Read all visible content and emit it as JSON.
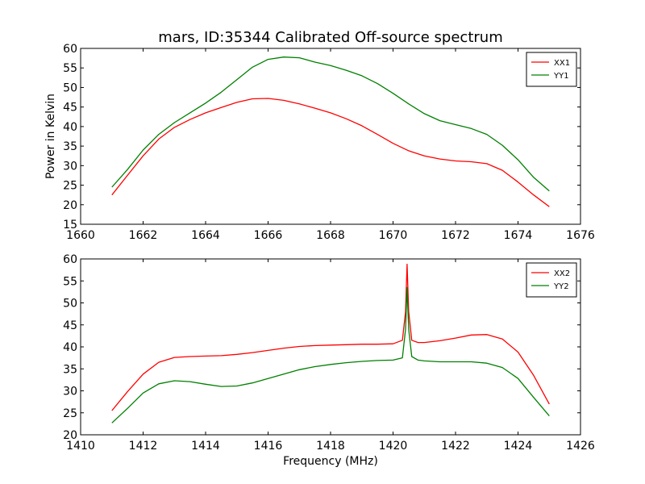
{
  "figure": {
    "title": "mars, ID:35344 Calibrated Off-source spectrum"
  },
  "chart_data": [
    {
      "type": "line",
      "title": "mars, ID:35344 Calibrated Off-source spectrum",
      "xlabel": "",
      "ylabel": "Power in Kelvin",
      "xlim": [
        1660,
        1676
      ],
      "ylim": [
        15,
        60
      ],
      "xticks": [
        1660,
        1662,
        1664,
        1666,
        1668,
        1670,
        1672,
        1674,
        1676
      ],
      "yticks": [
        15,
        20,
        25,
        30,
        35,
        40,
        45,
        50,
        55,
        60
      ],
      "grid": false,
      "legend": "top-right",
      "series": [
        {
          "name": "XX1",
          "color": "#ff0000",
          "x": [
            1661.0,
            1661.5,
            1662.0,
            1662.5,
            1663.0,
            1663.5,
            1664.0,
            1664.5,
            1665.0,
            1665.5,
            1666.0,
            1666.5,
            1667.0,
            1667.5,
            1668.0,
            1668.5,
            1669.0,
            1669.5,
            1670.0,
            1670.5,
            1671.0,
            1671.5,
            1672.0,
            1672.5,
            1673.0,
            1673.5,
            1674.0,
            1674.5,
            1675.0
          ],
          "y": [
            22.5,
            27.5,
            32.5,
            36.8,
            39.8,
            41.8,
            43.5,
            44.9,
            46.2,
            47.1,
            47.2,
            46.7,
            45.8,
            44.7,
            43.5,
            42.0,
            40.2,
            38.0,
            35.7,
            33.8,
            32.5,
            31.7,
            31.2,
            31.0,
            30.5,
            28.8,
            25.8,
            22.5,
            19.5
          ]
        },
        {
          "name": "YY1",
          "color": "#008000",
          "x": [
            1661.0,
            1661.5,
            1662.0,
            1662.5,
            1663.0,
            1663.5,
            1664.0,
            1664.5,
            1665.0,
            1665.5,
            1666.0,
            1666.5,
            1667.0,
            1667.5,
            1668.0,
            1668.5,
            1669.0,
            1669.5,
            1670.0,
            1670.5,
            1671.0,
            1671.5,
            1672.0,
            1672.5,
            1673.0,
            1673.5,
            1674.0,
            1674.5,
            1675.0
          ],
          "y": [
            24.5,
            29.0,
            34.0,
            38.0,
            41.0,
            43.5,
            46.0,
            48.8,
            52.0,
            55.2,
            57.2,
            57.8,
            57.6,
            56.5,
            55.6,
            54.4,
            53.0,
            51.0,
            48.5,
            45.8,
            43.3,
            41.5,
            40.5,
            39.5,
            38.0,
            35.2,
            31.5,
            27.0,
            23.5
          ]
        }
      ]
    },
    {
      "type": "line",
      "title": "",
      "xlabel": "Frequency (MHz)",
      "ylabel": "",
      "xlim": [
        1410,
        1426
      ],
      "ylim": [
        20,
        60
      ],
      "xticks": [
        1410,
        1412,
        1414,
        1416,
        1418,
        1420,
        1422,
        1424,
        1426
      ],
      "yticks": [
        20,
        25,
        30,
        35,
        40,
        45,
        50,
        55,
        60
      ],
      "grid": false,
      "legend": "top-right",
      "series": [
        {
          "name": "XX2",
          "color": "#ff0000",
          "x": [
            1411.0,
            1411.5,
            1412.0,
            1412.5,
            1413.0,
            1413.5,
            1414.0,
            1414.5,
            1415.0,
            1415.5,
            1416.0,
            1416.5,
            1417.0,
            1417.5,
            1418.0,
            1418.5,
            1419.0,
            1419.5,
            1420.0,
            1420.3,
            1420.4,
            1420.45,
            1420.5,
            1420.6,
            1420.8,
            1421.0,
            1421.5,
            1422.0,
            1422.5,
            1423.0,
            1423.5,
            1424.0,
            1424.5,
            1425.0
          ],
          "y": [
            25.5,
            29.8,
            33.8,
            36.5,
            37.6,
            37.8,
            37.9,
            38.0,
            38.3,
            38.7,
            39.2,
            39.7,
            40.1,
            40.3,
            40.4,
            40.5,
            40.6,
            40.6,
            40.7,
            41.5,
            48.0,
            58.8,
            48.0,
            41.5,
            41.0,
            41.0,
            41.4,
            42.0,
            42.7,
            42.8,
            41.8,
            38.8,
            33.5,
            27.0
          ]
        },
        {
          "name": "YY2",
          "color": "#008000",
          "x": [
            1411.0,
            1411.5,
            1412.0,
            1412.5,
            1413.0,
            1413.5,
            1414.0,
            1414.5,
            1415.0,
            1415.5,
            1416.0,
            1416.5,
            1417.0,
            1417.5,
            1418.0,
            1418.5,
            1419.0,
            1419.5,
            1420.0,
            1420.3,
            1420.4,
            1420.45,
            1420.5,
            1420.6,
            1420.8,
            1421.0,
            1421.5,
            1422.0,
            1422.5,
            1423.0,
            1423.5,
            1424.0,
            1424.5,
            1425.0
          ],
          "y": [
            22.7,
            26.0,
            29.5,
            31.6,
            32.3,
            32.1,
            31.5,
            31.0,
            31.1,
            31.8,
            32.8,
            33.8,
            34.8,
            35.5,
            36.0,
            36.4,
            36.7,
            36.9,
            37.0,
            37.5,
            44.0,
            53.5,
            44.0,
            37.8,
            37.0,
            36.8,
            36.6,
            36.6,
            36.6,
            36.3,
            35.3,
            32.8,
            28.5,
            24.3
          ]
        }
      ]
    }
  ]
}
